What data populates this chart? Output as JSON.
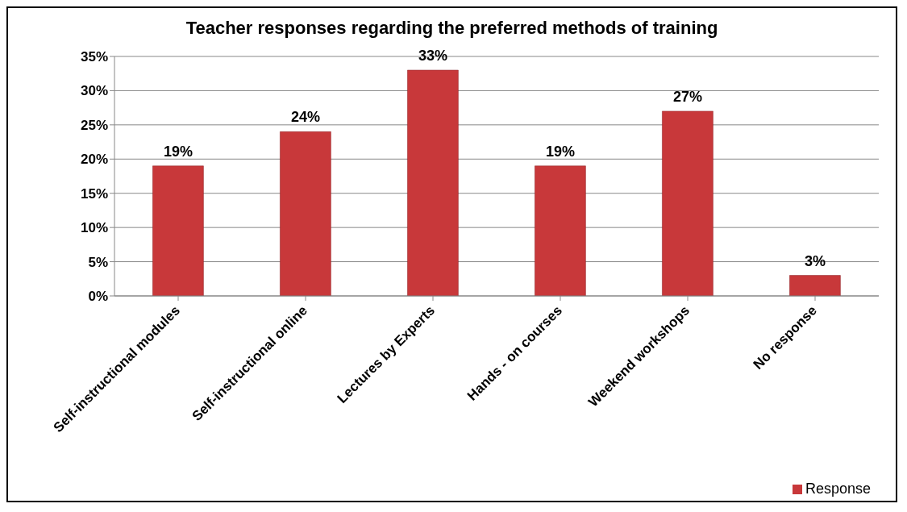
{
  "chart_data": {
    "type": "bar",
    "title": "Teacher responses regarding the preferred methods of training",
    "categories": [
      "Self-instructional modules",
      "Self-instructional online",
      "Lectures by Experts",
      "Hands - on courses",
      "Weekend workshops",
      "No response"
    ],
    "series": [
      {
        "name": "Response",
        "color": "#c8383a",
        "values": [
          19,
          24,
          33,
          19,
          27,
          3
        ]
      }
    ],
    "value_labels": [
      "19%",
      "24%",
      "33%",
      "19%",
      "27%",
      "3%"
    ],
    "ylim": [
      0,
      35
    ],
    "yticks": [
      {
        "value": 0,
        "label": "0%"
      },
      {
        "value": 5,
        "label": "5%"
      },
      {
        "value": 10,
        "label": "10%"
      },
      {
        "value": 15,
        "label": "15%"
      },
      {
        "value": 20,
        "label": "20%"
      },
      {
        "value": 25,
        "label": "25%"
      },
      {
        "value": 30,
        "label": "30%"
      },
      {
        "value": 35,
        "label": "35%"
      }
    ],
    "grid": "y",
    "legend": "bottom right"
  }
}
